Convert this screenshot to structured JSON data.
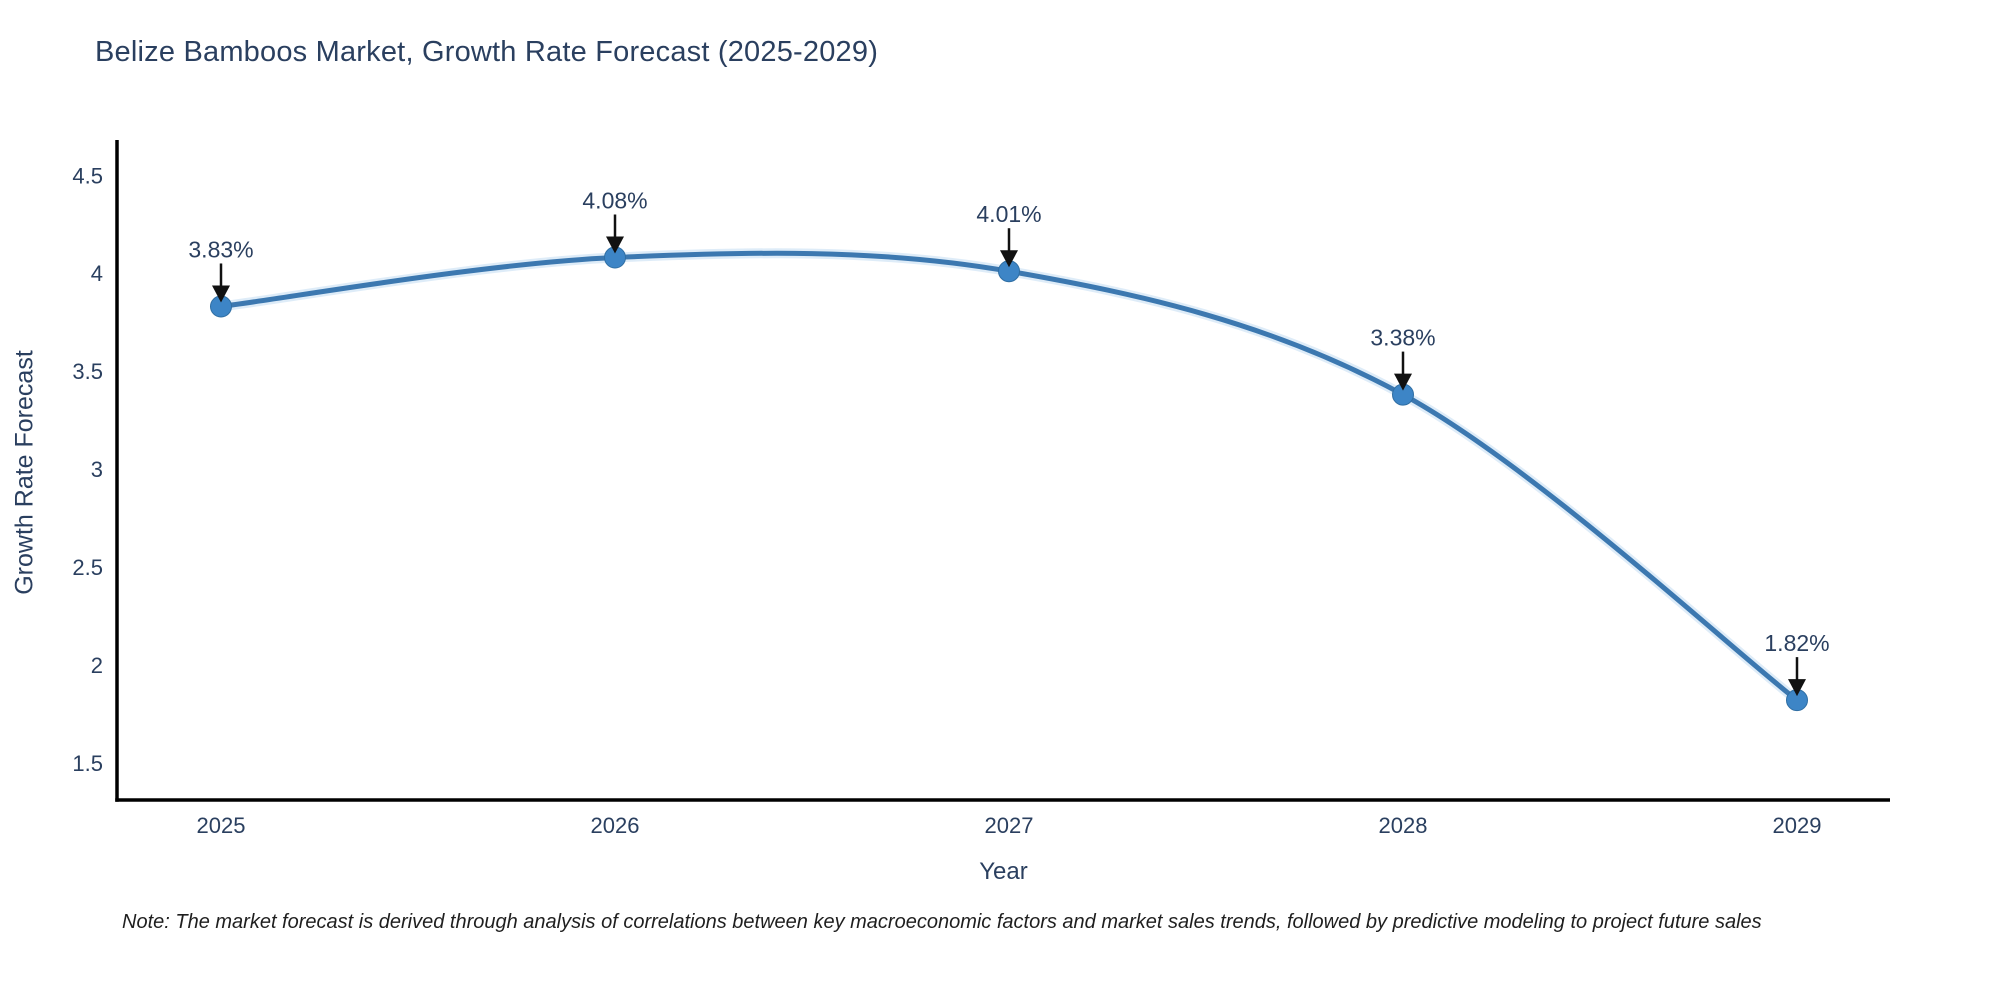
{
  "title": "Belize Bamboos Market, Growth Rate Forecast (2025-2029)",
  "note": "Note: The market forecast is derived through analysis of correlations between key macroeconomic factors and market sales trends, followed by predictive modeling to project future sales",
  "chart_data": {
    "type": "line",
    "title": "Belize Bamboos Market, Growth Rate Forecast (2025-2029)",
    "xlabel": "Year",
    "ylabel": "Growth Rate Forecast",
    "categories": [
      "2025",
      "2026",
      "2027",
      "2028",
      "2029"
    ],
    "series": [
      {
        "name": "Growth Rate Forecast",
        "values": [
          3.83,
          4.08,
          4.01,
          3.38,
          1.82
        ]
      }
    ],
    "point_labels": [
      "3.83%",
      "4.08%",
      "4.01%",
      "3.38%",
      "1.82%"
    ],
    "yticks": [
      1.5,
      2,
      2.5,
      3,
      3.5,
      4,
      4.5
    ],
    "ylim": [
      1.31,
      4.68
    ],
    "grid": false,
    "legend": "none",
    "line_shape": "spline",
    "colors": {
      "line": "#3c78b0",
      "line_halo": "#d3e6f5",
      "marker": "#3d85c6",
      "marker_edge": "#2f6ea3",
      "arrow": "#111111",
      "label_text": "#2a3f5f",
      "axis": "#000000"
    }
  }
}
